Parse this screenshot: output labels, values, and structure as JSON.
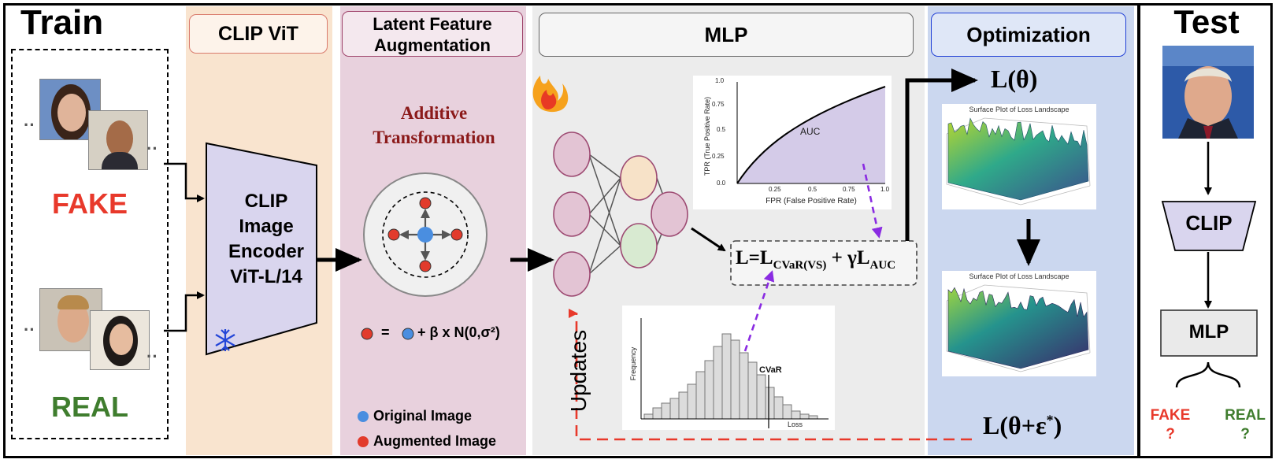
{
  "train": {
    "title": "Train",
    "fake_label": "FAKE",
    "real_label": "REAL"
  },
  "clip_vit": {
    "header": "CLIP ViT",
    "encoder_lines": [
      "CLIP",
      "Image",
      "Encoder",
      "ViT-L/14"
    ]
  },
  "augmentation": {
    "header_line1": "Latent Feature",
    "header_line2": "Augmentation",
    "subtitle_line1": "Additive",
    "subtitle_line2": "Transformation",
    "formula_eq": "=",
    "formula_rhs": "+ β x N(0,σ²)",
    "legend_original": "Original Image",
    "legend_augmented": "Augmented Image"
  },
  "mlp": {
    "header": "MLP",
    "updates_label": "Updates",
    "loss_formula_prefix": "L=L",
    "loss_formula_sub1": "CVaR(VS)",
    "loss_formula_mid": " + γL",
    "loss_formula_sub2": "AUC",
    "roc": {
      "ylabel": "TPR (True Positive Rate)",
      "xlabel": "FPR (False Positive Rate)",
      "area_label": "AUC",
      "yticks": [
        "0.0",
        "0.25",
        "0.5",
        "0.75",
        "1.0"
      ],
      "xticks": [
        "0.25",
        "0.5",
        "0.75",
        "1.0"
      ]
    },
    "hist": {
      "ylabel": "Frequency",
      "xlabel": "Loss",
      "marker": "CVaR"
    }
  },
  "optimization": {
    "header": "Optimization",
    "loss_top": "L(θ)",
    "loss_bottom_prefix": "L(θ+ε",
    "loss_bottom_sup": "*",
    "loss_bottom_suffix": ")",
    "plot_title_1": "Surface Plot of Loss Landscape",
    "plot_title_2": "Surface Plot of Loss Landscape"
  },
  "test": {
    "title": "Test",
    "clip_label": "CLIP",
    "mlp_label": "MLP",
    "fake_label": "FAKE",
    "fake_q": "?",
    "real_label": "REAL",
    "real_q": "?"
  },
  "colors": {
    "fake": "#e8392b",
    "real": "#3f7d2e",
    "serif_red": "#8b1a1a",
    "clip_fill": "#d9d5ee",
    "original_dot": "#4a8ee0",
    "augmented_dot": "#e23b2c",
    "neuron_pink": "#e3c4d4",
    "neuron_orange": "#f7e2c8",
    "neuron_green": "#d8ead1",
    "dash_purple": "#8a2be2",
    "dash_red": "#e8392b"
  }
}
